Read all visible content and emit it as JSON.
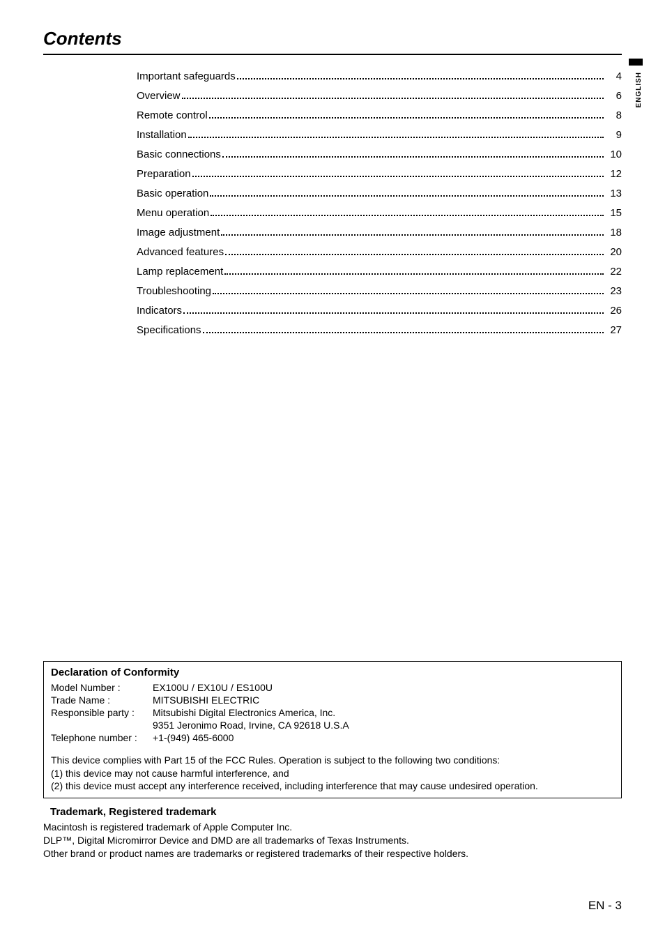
{
  "heading": "Contents",
  "side_tab": "ENGLISH",
  "toc": [
    {
      "label": "Important safeguards",
      "page": "4"
    },
    {
      "label": "Overview",
      "page": "6"
    },
    {
      "label": "Remote control",
      "page": "8"
    },
    {
      "label": "Installation",
      "page": "9"
    },
    {
      "label": "Basic connections",
      "page": "10"
    },
    {
      "label": "Preparation",
      "page": "12"
    },
    {
      "label": "Basic operation",
      "page": "13"
    },
    {
      "label": "Menu operation",
      "page": "15"
    },
    {
      "label": "Image adjustment",
      "page": "18"
    },
    {
      "label": "Advanced features",
      "page": "20"
    },
    {
      "label": "Lamp replacement",
      "page": "22"
    },
    {
      "label": "Troubleshooting",
      "page": "23"
    },
    {
      "label": "Indicators",
      "page": "26"
    },
    {
      "label": "Specifications",
      "page": "27"
    }
  ],
  "declaration": {
    "title": "Declaration of Conformity",
    "model_label": "Model Number :",
    "model_value": "EX100U / EX10U / ES100U",
    "trade_label": "Trade Name :",
    "trade_value": "MITSUBISHI ELECTRIC",
    "resp_label": "Responsible party :",
    "resp_value": "Mitsubishi Digital Electronics America, Inc.",
    "resp_addr": "9351 Jeronimo Road, Irvine, CA 92618 U.S.A",
    "tel_label": "Telephone number :",
    "tel_value": "+1-(949) 465-6000",
    "compliance1": "This device complies with Part 15 of the FCC Rules. Operation is subject to the following two conditions:",
    "compliance2": "(1) this device may not cause harmful interference, and",
    "compliance3": "(2) this device must accept any interference received, including interference that may cause undesired operation."
  },
  "trademark": {
    "title": "Trademark, Registered trademark",
    "line1": "Macintosh is registered trademark of Apple Computer Inc.",
    "line2": "DLP™, Digital Micromirror Device and DMD are all trademarks of Texas Instruments.",
    "line3": "Other brand or product names are trademarks or registered trademarks of their respective holders."
  },
  "page_number": "EN - 3",
  "colors": {
    "text": "#000000",
    "background": "#ffffff",
    "rule": "#000000"
  },
  "typography": {
    "heading_fontsize": 26,
    "body_fontsize": 15,
    "small_fontsize": 14,
    "pageno_fontsize": 17
  }
}
